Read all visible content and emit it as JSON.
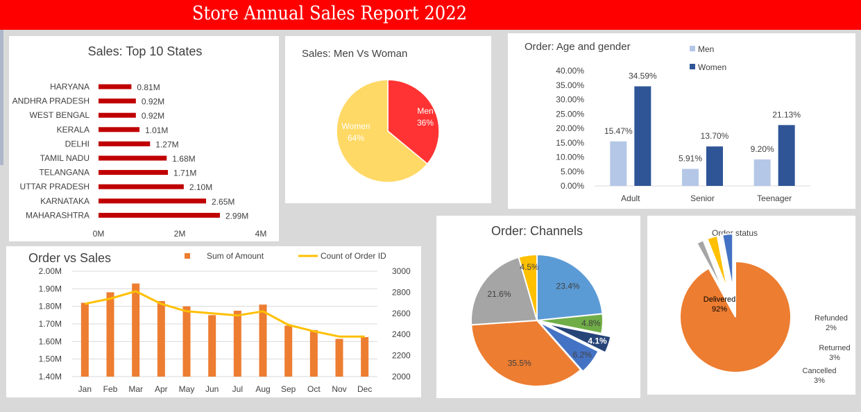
{
  "banner": {
    "title": "Store Annual Sales Report 2022"
  },
  "colors": {
    "red": "#c00000",
    "orange": "#ed7d31",
    "yellow": "#ffc000",
    "men_light": "#b4c7e7",
    "women_dark": "#2f5597",
    "pie_red": "#ff3333",
    "pie_yellow": "#ffd966"
  },
  "chart_data": [
    {
      "id": "states",
      "type": "bar",
      "orientation": "horizontal",
      "title": "Sales: Top 10 States",
      "categories": [
        "HARYANA",
        "ANDHRA PRADESH",
        "WEST BENGAL",
        "KERALA",
        "DELHI",
        "TAMIL NADU",
        "TELANGANA",
        "UTTAR PRADESH",
        "KARNATAKA",
        "MAHARASHTRA"
      ],
      "values": [
        0.81,
        0.92,
        0.92,
        1.01,
        1.27,
        1.68,
        1.71,
        2.1,
        2.65,
        2.99
      ],
      "value_labels": [
        "0.81M",
        "0.92M",
        "0.92M",
        "1.01M",
        "1.27M",
        "1.68M",
        "1.71M",
        "2.10M",
        "2.65M",
        "2.99M"
      ],
      "xlim": [
        0,
        4
      ],
      "xticks": [
        "0M",
        "2M",
        "4M"
      ]
    },
    {
      "id": "gender",
      "type": "pie",
      "title": "Sales: Men Vs Woman",
      "slices": [
        {
          "name": "Men",
          "value": 36,
          "label": "36%"
        },
        {
          "name": "Women",
          "value": 64,
          "label": "64%"
        }
      ]
    },
    {
      "id": "agegender",
      "type": "bar",
      "title": "Order: Age and gender",
      "categories": [
        "Adult",
        "Senior",
        "Teenager"
      ],
      "series": [
        {
          "name": "Men",
          "values": [
            15.47,
            5.91,
            9.2
          ],
          "labels": [
            "15.47%",
            "5.91%",
            "9.20%"
          ]
        },
        {
          "name": "Women",
          "values": [
            34.59,
            13.7,
            21.13
          ],
          "labels": [
            "34.59%",
            "13.70%",
            "21.13%"
          ]
        }
      ],
      "ylim": [
        0,
        40
      ],
      "yticks": [
        "0.00%",
        "5.00%",
        "10.00%",
        "15.00%",
        "20.00%",
        "25.00%",
        "30.00%",
        "35.00%",
        "40.00%"
      ],
      "legend": "top"
    },
    {
      "id": "ordersales",
      "type": "bar-line-combo",
      "title": "Order vs Sales",
      "categories": [
        "Jan",
        "Feb",
        "Mar",
        "Apr",
        "May",
        "Jun",
        "Jul",
        "Aug",
        "Sep",
        "Oct",
        "Nov",
        "Dec"
      ],
      "series": [
        {
          "name": "Sum of Amount",
          "type": "bar",
          "axis": "left",
          "values": [
            1.82,
            1.88,
            1.93,
            1.83,
            1.8,
            1.75,
            1.775,
            1.81,
            1.69,
            1.665,
            1.615,
            1.625
          ]
        },
        {
          "name": "Count of Order ID",
          "type": "line",
          "axis": "right",
          "values": [
            2690,
            2740,
            2810,
            2690,
            2620,
            2600,
            2580,
            2620,
            2490,
            2430,
            2380,
            2380
          ]
        }
      ],
      "ylim_left": [
        1.4,
        2.0
      ],
      "yticks_left": [
        "1.40M",
        "1.50M",
        "1.60M",
        "1.70M",
        "1.80M",
        "1.90M",
        "2.00M"
      ],
      "ylim_right": [
        2000,
        3000
      ],
      "yticks_right": [
        "2000",
        "2200",
        "2400",
        "2600",
        "2800",
        "3000"
      ],
      "legend": "top"
    },
    {
      "id": "channels",
      "type": "pie",
      "title": "Order: Channels",
      "slices": [
        {
          "value": 23.4,
          "label": "23.4%",
          "color": "#5b9bd5"
        },
        {
          "value": 4.8,
          "label": "4.8%",
          "color": "#70ad47"
        },
        {
          "value": 4.1,
          "label": "4.1%",
          "color": "#264478"
        },
        {
          "value": 6.2,
          "label": "6.2%",
          "color": "#4472c4"
        },
        {
          "value": 35.5,
          "label": "35.5%",
          "color": "#ed7d31"
        },
        {
          "value": 21.6,
          "label": "21.6%",
          "color": "#a5a5a5"
        },
        {
          "value": 4.5,
          "label": "4.5%",
          "color": "#ffc000"
        }
      ]
    },
    {
      "id": "status",
      "type": "pie",
      "title": "Order status",
      "slices": [
        {
          "name": "Delivered",
          "value": 92,
          "label": "92%",
          "color": "#ed7d31"
        },
        {
          "name": "Refunded",
          "value": 2,
          "label": "2%",
          "color": "#a5a5a5"
        },
        {
          "name": "Returned",
          "value": 3,
          "label": "3%",
          "color": "#ffc000"
        },
        {
          "name": "Cancelled",
          "value": 3,
          "label": "3%",
          "color": "#4472c4"
        }
      ]
    }
  ]
}
